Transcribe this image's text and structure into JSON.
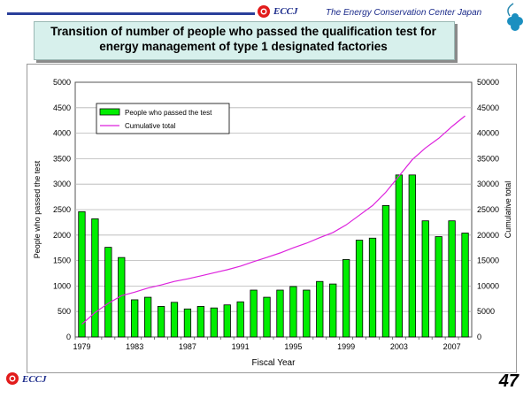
{
  "header": {
    "logo_text": "ECCJ",
    "organization": "The Energy Conservation Center Japan"
  },
  "slide": {
    "title": "Transition of number of people who passed the qualification test for energy management of type 1 designated factories",
    "page_number": "47"
  },
  "footer": {
    "logo_text": "ECCJ"
  },
  "colors": {
    "bar": "#00ee00",
    "bar_stroke": "#000000",
    "line": "#dd22dd",
    "accent": "#1a2a8a"
  },
  "chart_data": {
    "type": "bar",
    "xlabel": "Fiscal Year",
    "ylabel": "People who passed the test",
    "y2label": "Cumulative total",
    "ylim": [
      0,
      5000
    ],
    "y2lim": [
      0,
      50000
    ],
    "yticks": [
      0,
      500,
      1000,
      1500,
      2000,
      2500,
      3000,
      3500,
      4000,
      4500,
      5000
    ],
    "y2ticks": [
      0,
      5000,
      10000,
      15000,
      20000,
      25000,
      30000,
      35000,
      40000,
      45000,
      50000
    ],
    "categories": [
      1979,
      1980,
      1981,
      1982,
      1983,
      1984,
      1985,
      1986,
      1987,
      1988,
      1989,
      1990,
      1991,
      1992,
      1993,
      1994,
      1995,
      1996,
      1997,
      1998,
      1999,
      2000,
      2001,
      2002,
      2003,
      2004,
      2005,
      2006,
      2007,
      2008
    ],
    "xtick_labels": [
      "1979",
      "1983",
      "1987",
      "1991",
      "1995",
      "1999",
      "2003",
      "2007"
    ],
    "grid": true,
    "legend": "top-left",
    "series": [
      {
        "name": "People who passed the test",
        "type": "bar",
        "values": [
          2460,
          2320,
          1760,
          1560,
          730,
          780,
          600,
          680,
          550,
          600,
          570,
          630,
          690,
          920,
          780,
          920,
          990,
          920,
          1090,
          1040,
          1520,
          1900,
          1940,
          2580,
          3180,
          3180,
          2280,
          1970,
          2280,
          2040
        ]
      },
      {
        "name": "Cumulative total",
        "type": "line",
        "axis": "right",
        "values": [
          2500,
          4800,
          6600,
          8100,
          8800,
          9600,
          10200,
          10900,
          11400,
          12000,
          12600,
          13200,
          13900,
          14800,
          15600,
          16500,
          17500,
          18400,
          19500,
          20500,
          22000,
          23900,
          25800,
          28400,
          31600,
          34800,
          37100,
          39000,
          41300,
          43400
        ]
      }
    ]
  }
}
